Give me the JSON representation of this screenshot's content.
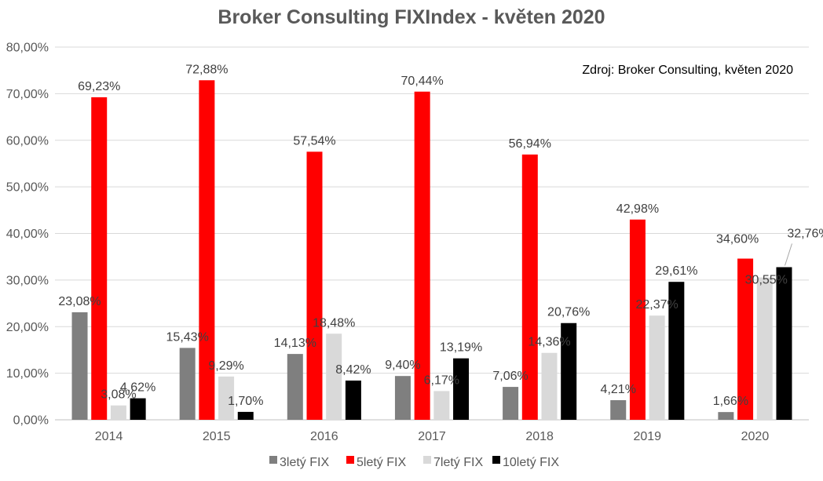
{
  "chart_data": {
    "type": "bar",
    "title": "Broker Consulting FIXIndex - květen 2020",
    "source_note": "Zdroj: Broker Consulting, květen 2020",
    "categories": [
      "2014",
      "2015",
      "2016",
      "2017",
      "2018",
      "2019",
      "2020"
    ],
    "ylim": [
      0,
      80
    ],
    "yticks": [
      "0,00%",
      "10,00%",
      "20,00%",
      "30,00%",
      "40,00%",
      "50,00%",
      "60,00%",
      "70,00%",
      "80,00%"
    ],
    "grid": true,
    "legend_position": "bottom",
    "series": [
      {
        "name": "3letý FIX",
        "color": "#7f7f7f",
        "values": [
          23.08,
          15.43,
          14.13,
          9.4,
          7.06,
          4.21,
          1.66
        ],
        "labels": [
          "23,08%",
          "15,43%",
          "14,13%",
          "9,40%",
          "7,06%",
          "4,21%",
          "1,66%"
        ]
      },
      {
        "name": "5letý FIX",
        "color": "#ff0000",
        "values": [
          69.23,
          72.88,
          57.54,
          70.44,
          56.94,
          42.98,
          34.6
        ],
        "labels": [
          "69,23%",
          "72,88%",
          "57,54%",
          "70,44%",
          "56,94%",
          "42,98%",
          "34,60%"
        ]
      },
      {
        "name": "7letý FIX",
        "color": "#d9d9d9",
        "values": [
          3.08,
          9.29,
          18.48,
          6.17,
          14.36,
          22.37,
          30.55
        ],
        "labels": [
          "3,08%",
          "9,29%",
          "18,48%",
          "6,17%",
          "14,36%",
          "22,37%",
          "30,55%"
        ]
      },
      {
        "name": "10letý FIX",
        "color": "#000000",
        "values": [
          4.62,
          1.7,
          8.42,
          13.19,
          20.76,
          29.61,
          32.76
        ],
        "labels": [
          "4,62%",
          "1,70%",
          "8,42%",
          "13,19%",
          "20,76%",
          "29,61%",
          "32,76%"
        ]
      }
    ]
  }
}
